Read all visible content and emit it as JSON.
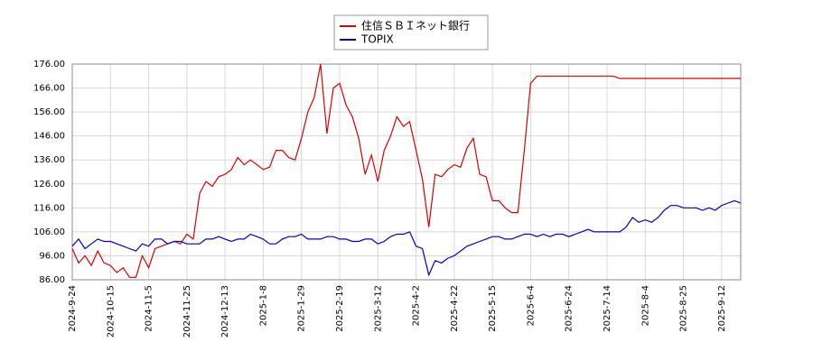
{
  "chart_data": {
    "type": "line",
    "categories": [
      "2024-9-24",
      null,
      null,
      null,
      null,
      null,
      "2024-10-15",
      null,
      null,
      null,
      null,
      null,
      "2024-11-5",
      null,
      null,
      null,
      null,
      null,
      "2024-11-25",
      null,
      null,
      null,
      null,
      null,
      "2024-12-13",
      null,
      null,
      null,
      null,
      null,
      "2025-1-8",
      null,
      null,
      null,
      null,
      null,
      "2025-1-29",
      null,
      null,
      null,
      null,
      null,
      "2025-2-19",
      null,
      null,
      null,
      null,
      null,
      "2025-3-12",
      null,
      null,
      null,
      null,
      null,
      "2025-4-2",
      null,
      null,
      null,
      null,
      null,
      "2025-4-22",
      null,
      null,
      null,
      null,
      null,
      "2025-5-15",
      null,
      null,
      null,
      null,
      null,
      "2025-6-4",
      null,
      null,
      null,
      null,
      null,
      "2025-6-24",
      null,
      null,
      null,
      null,
      null,
      "2025-7-14",
      null,
      null,
      null,
      null,
      null,
      "2025-8-4",
      null,
      null,
      null,
      null,
      null,
      "2025-8-25",
      null,
      null,
      null,
      null,
      null,
      "2025-9-12",
      null,
      null,
      null
    ],
    "series": [
      {
        "name": "住信ＳＢＩネット銀行",
        "color": "#dd0000",
        "values": [
          99,
          93,
          96,
          92,
          98,
          93,
          92,
          89,
          91,
          87,
          87,
          96,
          91,
          99,
          100,
          101,
          102,
          101,
          105,
          103,
          122,
          127,
          125,
          129,
          130,
          132,
          137,
          134,
          136,
          134,
          132,
          133,
          140,
          140,
          137,
          136,
          145,
          156,
          162,
          176,
          147,
          166,
          168,
          159,
          154,
          145,
          130,
          138,
          127,
          140,
          146,
          154,
          150,
          152,
          140,
          128,
          108,
          130,
          129,
          132,
          134,
          133,
          141,
          145,
          130,
          129,
          119,
          119,
          116,
          114,
          114,
          140,
          168,
          171,
          171,
          171,
          171,
          171,
          171,
          171,
          171,
          171,
          171,
          171,
          171,
          171,
          170,
          170,
          170,
          170,
          170,
          170,
          170,
          170,
          170,
          170,
          170,
          170,
          170,
          170,
          170,
          170,
          170,
          170,
          170,
          170
        ]
      },
      {
        "name": "TOPIX",
        "color": "#0000cc",
        "values": [
          100,
          103,
          99,
          101,
          103,
          102,
          102,
          101,
          100,
          99,
          98,
          101,
          100,
          103,
          103,
          101,
          102,
          102,
          101,
          101,
          101,
          103,
          103,
          104,
          103,
          102,
          103,
          103,
          105,
          104,
          103,
          101,
          101,
          103,
          104,
          104,
          105,
          103,
          103,
          103,
          104,
          104,
          103,
          103,
          102,
          102,
          103,
          103,
          101,
          102,
          104,
          105,
          105,
          106,
          100,
          99,
          88,
          94,
          93,
          95,
          96,
          98,
          100,
          101,
          102,
          103,
          104,
          104,
          103,
          103,
          104,
          105,
          105,
          104,
          105,
          104,
          105,
          105,
          104,
          105,
          106,
          107,
          106,
          106,
          106,
          106,
          106,
          108,
          112,
          110,
          111,
          110,
          112,
          115,
          117,
          117,
          116,
          116,
          116,
          115,
          116,
          115,
          117,
          118,
          119,
          118
        ]
      }
    ],
    "ylim": [
      86,
      176
    ],
    "yticks": [
      {
        "value": 86,
        "label": "86.00"
      },
      {
        "value": 96,
        "label": "96.00"
      },
      {
        "value": 106,
        "label": "106.00"
      },
      {
        "value": 116,
        "label": "116.00"
      },
      {
        "value": 126,
        "label": "126.00"
      },
      {
        "value": 136,
        "label": "136.00"
      },
      {
        "value": 146,
        "label": "146.00"
      },
      {
        "value": 156,
        "label": "156.00"
      },
      {
        "value": 166,
        "label": "166.00"
      },
      {
        "value": 176,
        "label": "176.00"
      }
    ],
    "grid": true
  }
}
